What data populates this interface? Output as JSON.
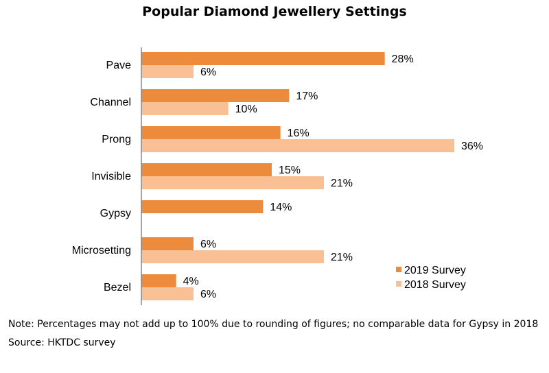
{
  "chart_data": {
    "type": "bar",
    "orientation": "horizontal",
    "title": "Popular Diamond Jewellery Settings",
    "categories": [
      "Pave",
      "Channel",
      "Prong",
      "Invisible",
      "Gypsy",
      "Microsetting",
      "Bezel"
    ],
    "series": [
      {
        "name": "2019 Survey",
        "color": "#ed8b3c",
        "values": [
          28,
          17,
          16,
          15,
          14,
          6,
          4
        ],
        "labels": [
          "28%",
          "17%",
          "16%",
          "15%",
          "14%",
          "6%",
          "4%"
        ]
      },
      {
        "name": "2018 Survey",
        "color": "#f9c095",
        "values": [
          6,
          10,
          36,
          21,
          null,
          21,
          6
        ],
        "labels": [
          "6%",
          "10%",
          "36%",
          "21%",
          "",
          "21%",
          "6%"
        ]
      }
    ],
    "xlim": [
      0,
      36
    ],
    "grid": false,
    "legend_position": "bottom-right"
  },
  "notes": {
    "note": "Note: Percentages may not add up to 100% due to rounding of figures; no comparable data for Gypsy in 2018",
    "source": "Source: HKTDC survey"
  }
}
